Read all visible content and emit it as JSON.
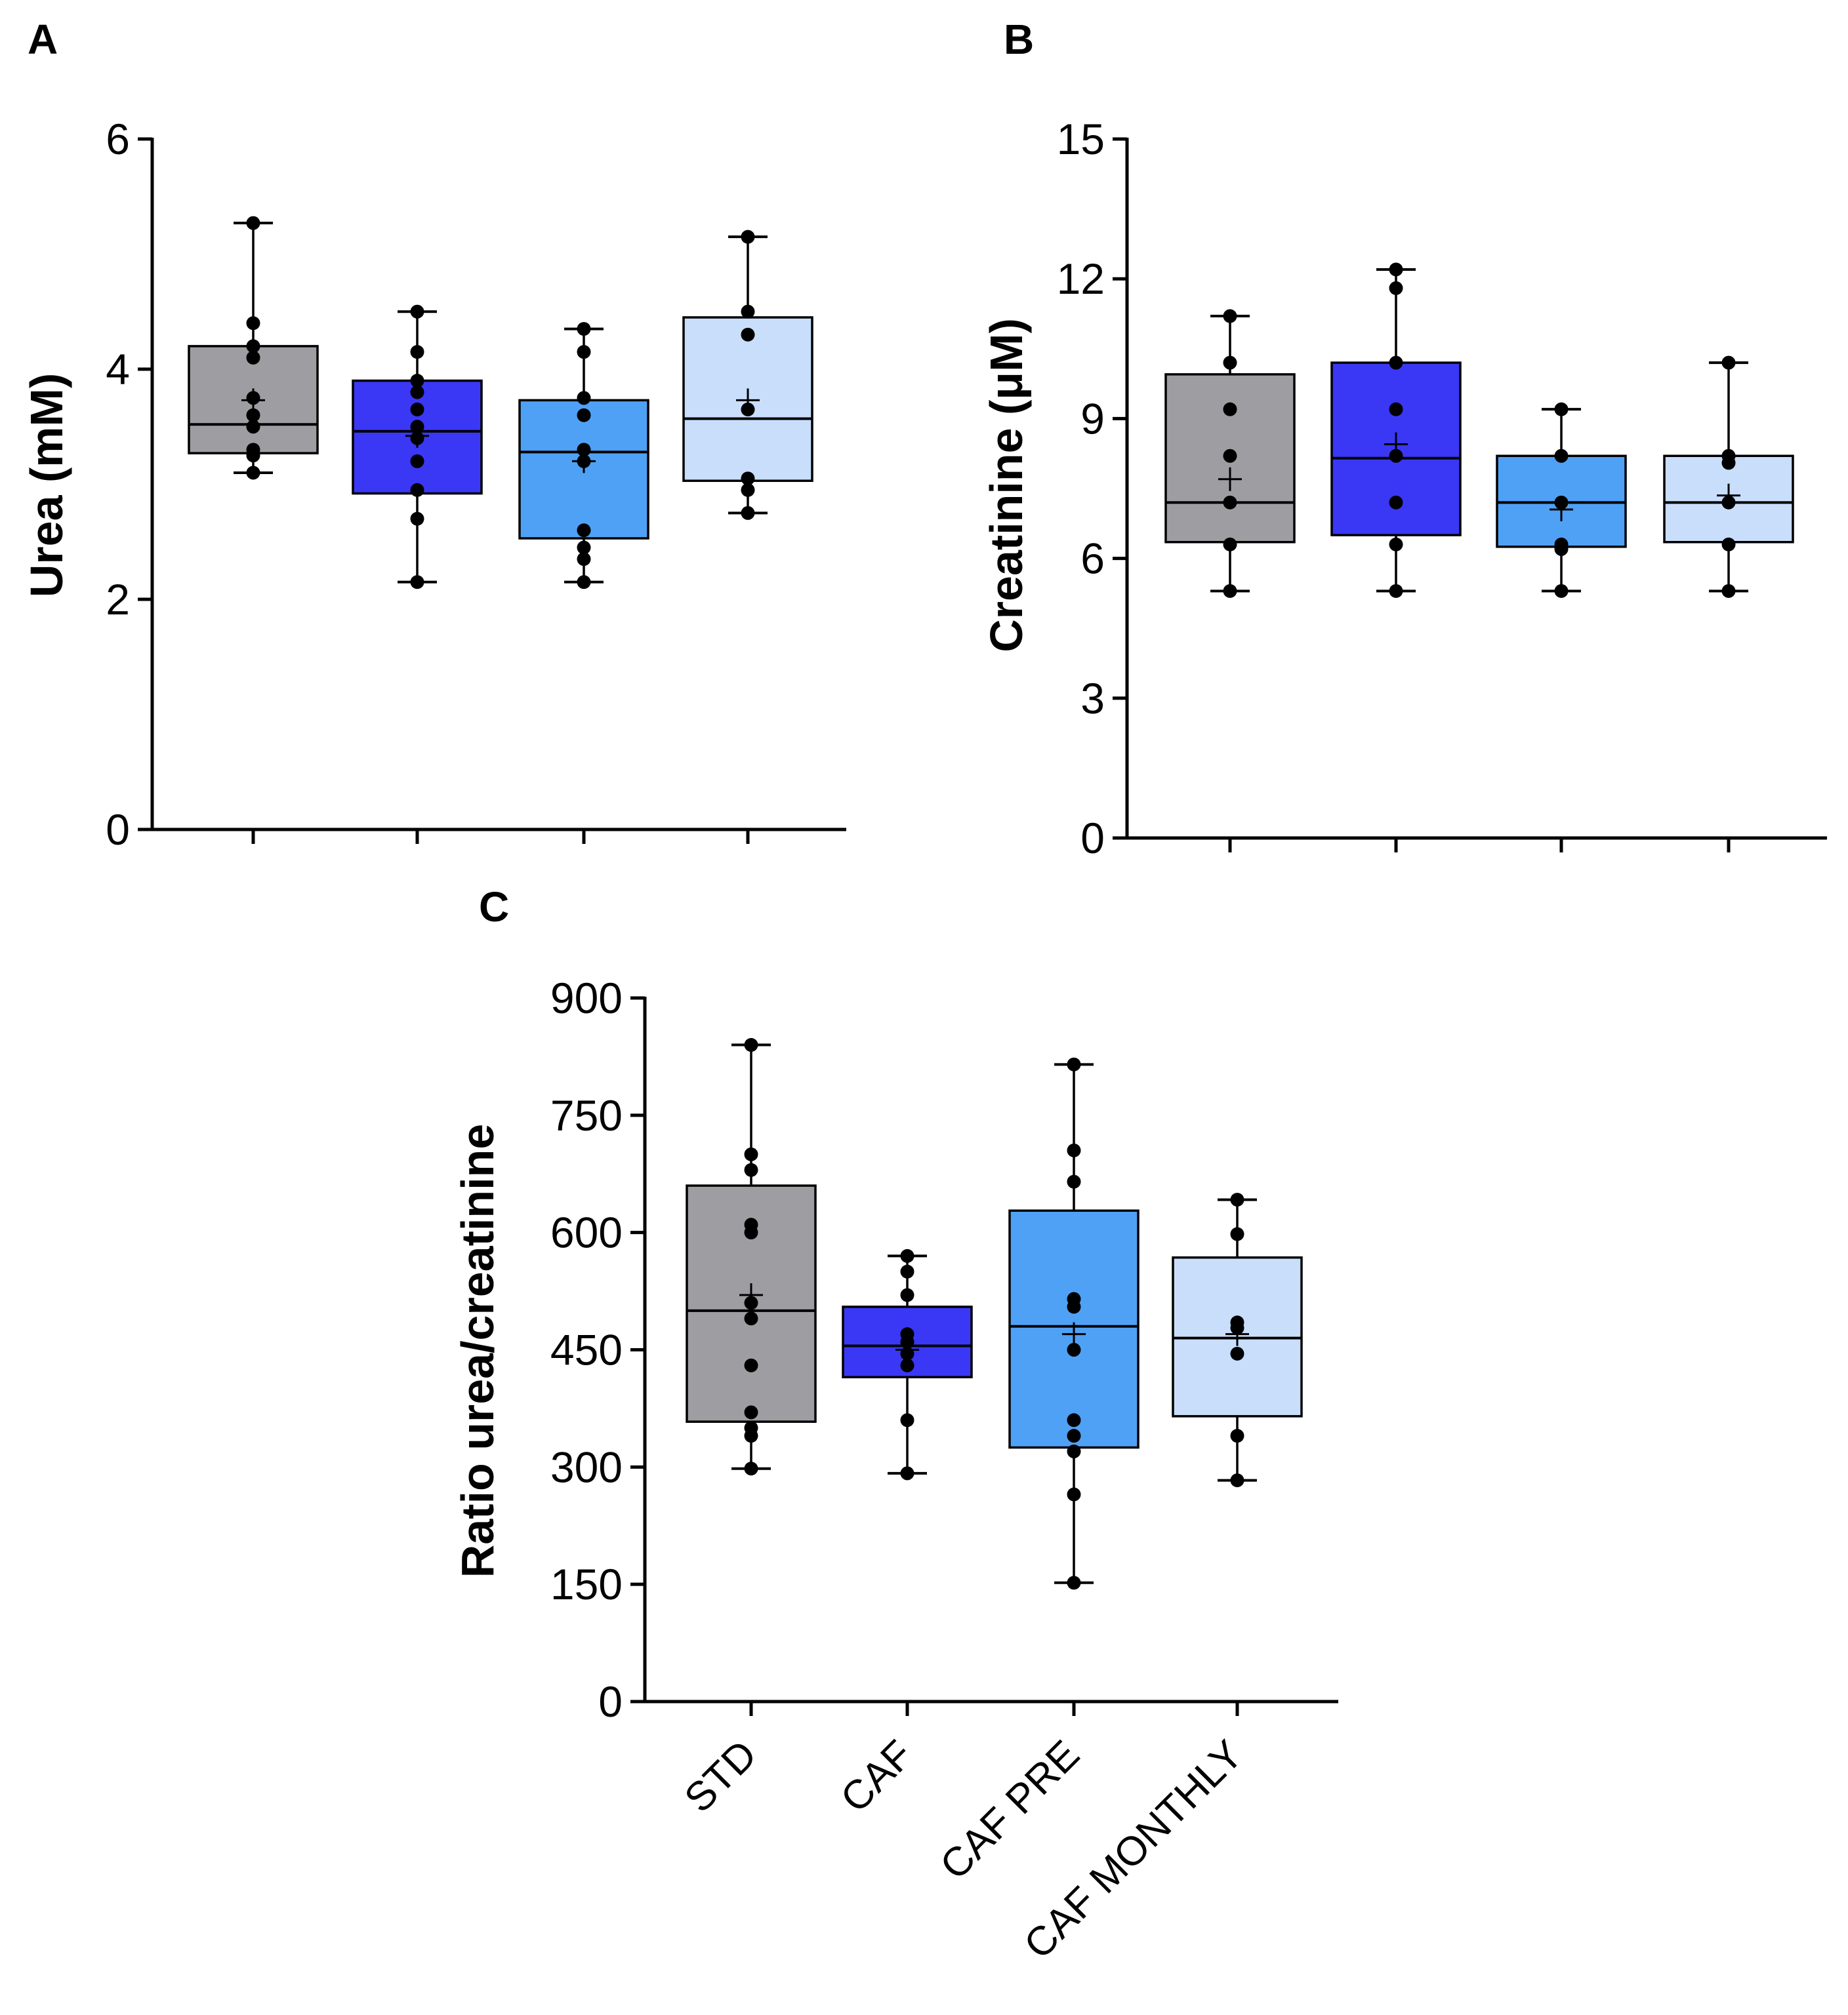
{
  "colors": {
    "STD": "#9e9ea2",
    "CAF": "#3a38f5",
    "CAF PRE": "#4fa1f5",
    "CAF MONTHLY": "#c9defb",
    "axis": "#000000"
  },
  "categories": [
    "STD",
    "CAF",
    "CAF PRE",
    "CAF MONTHLY"
  ],
  "chart_data": [
    {
      "panel": "A",
      "type": "box",
      "ylabel": "Urea (mM)",
      "ylim": [
        0,
        6
      ],
      "yticks": [
        "0",
        "2",
        "4",
        "6"
      ],
      "show_category_labels": false,
      "series": [
        {
          "category": "STD",
          "min": 3.1,
          "q1": 3.27,
          "median": 3.52,
          "q3": 4.2,
          "max": 5.27,
          "mean": 3.73,
          "points": [
            5.27,
            4.4,
            4.2,
            4.1,
            3.75,
            3.6,
            3.5,
            3.3,
            3.25,
            3.1
          ]
        },
        {
          "category": "CAF",
          "min": 2.15,
          "q1": 2.92,
          "median": 3.46,
          "q3": 3.9,
          "max": 4.5,
          "mean": 3.42,
          "points": [
            4.5,
            4.15,
            3.9,
            3.8,
            3.65,
            3.5,
            3.4,
            3.2,
            2.95,
            2.7,
            2.15
          ]
        },
        {
          "category": "CAF PRE",
          "min": 2.15,
          "q1": 2.53,
          "median": 3.28,
          "q3": 3.73,
          "max": 4.35,
          "mean": 3.2,
          "points": [
            4.35,
            4.15,
            3.75,
            3.6,
            3.3,
            3.2,
            2.6,
            2.45,
            2.35,
            2.15
          ]
        },
        {
          "category": "CAF MONTHLY",
          "min": 2.75,
          "q1": 3.03,
          "median": 3.57,
          "q3": 4.45,
          "max": 5.15,
          "mean": 3.73,
          "points": [
            5.15,
            4.5,
            4.3,
            3.65,
            3.05,
            2.95,
            2.75
          ]
        }
      ]
    },
    {
      "panel": "B",
      "type": "box",
      "ylabel": "Creatinine (μM)",
      "ylim": [
        0,
        15
      ],
      "yticks": [
        "0",
        "3",
        "6",
        "9",
        "12",
        "15"
      ],
      "show_category_labels": false,
      "series": [
        {
          "category": "STD",
          "min": 5.3,
          "q1": 6.35,
          "median": 7.2,
          "q3": 9.95,
          "max": 11.2,
          "mean": 7.7,
          "points": [
            11.2,
            10.2,
            9.2,
            8.2,
            7.2,
            6.3,
            5.3
          ]
        },
        {
          "category": "CAF",
          "min": 5.3,
          "q1": 6.5,
          "median": 8.15,
          "q3": 10.2,
          "max": 12.2,
          "mean": 8.45,
          "points": [
            12.2,
            11.8,
            10.2,
            9.2,
            8.2,
            7.2,
            6.3,
            5.3
          ]
        },
        {
          "category": "CAF PRE",
          "min": 5.3,
          "q1": 6.25,
          "median": 7.2,
          "q3": 8.2,
          "max": 9.2,
          "mean": 7.05,
          "points": [
            9.2,
            8.2,
            7.2,
            6.3,
            6.2,
            5.3
          ]
        },
        {
          "category": "CAF MONTHLY",
          "min": 5.3,
          "q1": 6.35,
          "median": 7.2,
          "q3": 8.2,
          "max": 10.2,
          "mean": 7.35,
          "points": [
            10.2,
            8.2,
            8.05,
            7.2,
            6.3,
            5.3
          ]
        }
      ]
    },
    {
      "panel": "C",
      "type": "box",
      "ylabel": "Ratio urea/creatinine",
      "ylim": [
        0,
        900
      ],
      "yticks": [
        "0",
        "150",
        "300",
        "450",
        "600",
        "750",
        "900"
      ],
      "show_category_labels": true,
      "series": [
        {
          "category": "STD",
          "min": 298,
          "q1": 358,
          "median": 500,
          "q3": 660,
          "max": 840,
          "mean": 520,
          "points": [
            840,
            700,
            680,
            610,
            600,
            510,
            490,
            430,
            370,
            350,
            340,
            298
          ]
        },
        {
          "category": "CAF",
          "min": 292,
          "q1": 415,
          "median": 455,
          "q3": 505,
          "max": 570,
          "mean": 450,
          "points": [
            570,
            550,
            520,
            470,
            460,
            445,
            430,
            360,
            292
          ]
        },
        {
          "category": "CAF PRE",
          "min": 152,
          "q1": 325,
          "median": 480,
          "q3": 628,
          "max": 815,
          "mean": 470,
          "points": [
            815,
            705,
            665,
            515,
            505,
            450,
            360,
            340,
            320,
            265,
            152
          ]
        },
        {
          "category": "CAF MONTHLY",
          "min": 283,
          "q1": 365,
          "median": 465,
          "q3": 568,
          "max": 642,
          "mean": 470,
          "points": [
            642,
            598,
            485,
            478,
            445,
            340,
            283
          ]
        }
      ]
    }
  ]
}
